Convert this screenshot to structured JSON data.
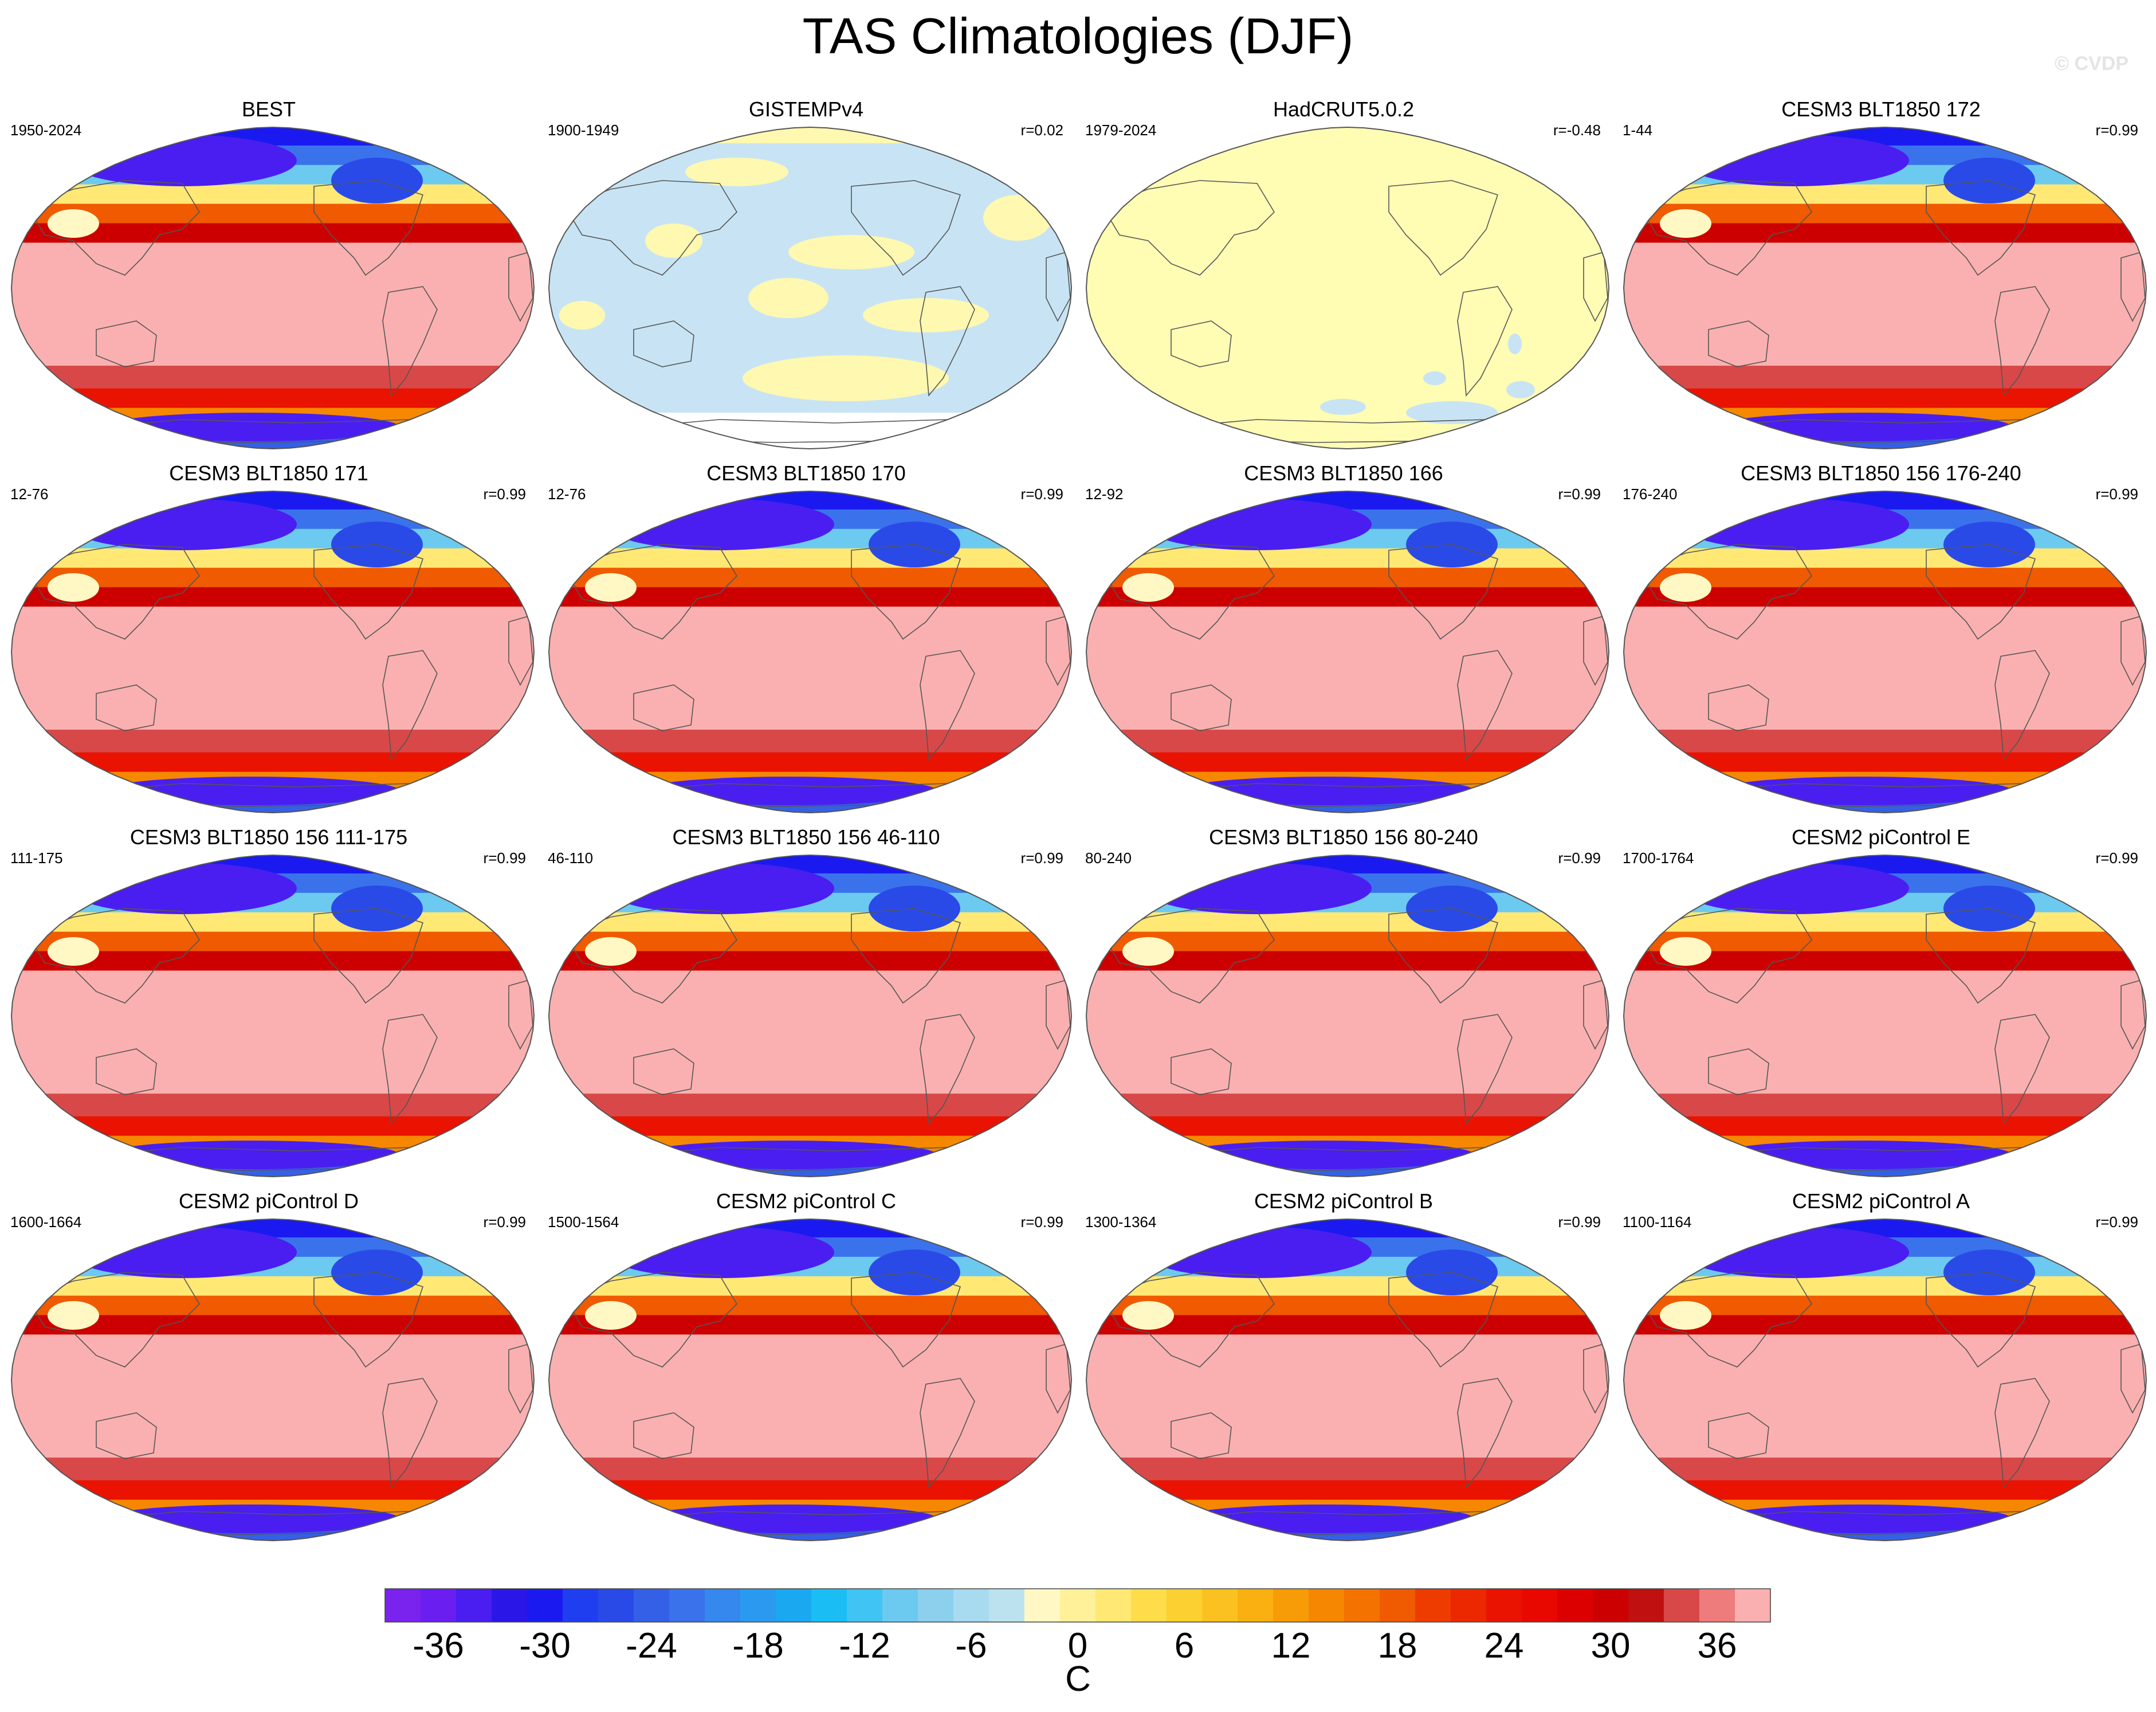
{
  "title": "TAS Climatologies (DJF)",
  "watermark": "© CVDP",
  "chart_data": {
    "type": "heatmap",
    "variable": "TAS",
    "season": "DJF",
    "projection": "Robinson (Pacific-centered)",
    "colorbar": {
      "unit": "C",
      "levels": [
        -39,
        -37.5,
        -36,
        -34.5,
        -33,
        -31.5,
        -30,
        -28.5,
        -27,
        -25.5,
        -24,
        -22.5,
        -21,
        -19.5,
        -18,
        -16.5,
        -15,
        -13.5,
        -12,
        -10.5,
        -9,
        -7.5,
        -6,
        -4.5,
        -3,
        -1.5,
        0,
        1.5,
        3,
        4.5,
        6,
        7.5,
        9,
        10.5,
        12,
        13.5,
        15,
        16.5,
        18,
        19.5,
        21,
        22.5,
        24,
        25.5,
        27,
        28.5,
        30,
        31.5,
        33,
        34.5,
        36,
        37.5,
        39
      ],
      "tick_labels": [
        "-36",
        "-30",
        "-24",
        "-18",
        "-12",
        "-6",
        "0",
        "6",
        "12",
        "18",
        "24",
        "30",
        "36"
      ],
      "colors": [
        "#7a22ee",
        "#6a1ef0",
        "#4a1ef0",
        "#2b16e8",
        "#1a1af0",
        "#1e3ef0",
        "#2a4ae8",
        "#3460e8",
        "#3a72ec",
        "#3488ee",
        "#2a9af0",
        "#1aa8f0",
        "#1abef4",
        "#40c4f4",
        "#6ccaf0",
        "#8cd0ee",
        "#a8daf0",
        "#bce2f0",
        "#fff8c4",
        "#fff09a",
        "#ffe874",
        "#fedc4a",
        "#fcd030",
        "#fbc120",
        "#f9b010",
        "#f79c06",
        "#f58800",
        "#f37200",
        "#f05a00",
        "#ee3c00",
        "#ec2800",
        "#ea1200",
        "#e80800",
        "#dc0000",
        "#cc0000",
        "#c01010",
        "#d84848",
        "#ee7c7c",
        "#fab0b0"
      ]
    },
    "panels": [
      {
        "name": "BEST",
        "period": "1950-2024",
        "r": "",
        "kind": "full"
      },
      {
        "name": "GISTEMPv4",
        "period": "1900-1949",
        "r": "r=0.02",
        "kind": "gistemp"
      },
      {
        "name": "HadCRUT5.0.2",
        "period": "1979-2024",
        "r": "r=-0.48",
        "kind": "hadcrut"
      },
      {
        "name": "CESM3 BLT1850 172",
        "period": "1-44",
        "r": "r=0.99",
        "kind": "full"
      },
      {
        "name": "CESM3 BLT1850 171",
        "period": "12-76",
        "r": "r=0.99",
        "kind": "full"
      },
      {
        "name": "CESM3 BLT1850 170",
        "period": "12-76",
        "r": "r=0.99",
        "kind": "full"
      },
      {
        "name": "CESM3 BLT1850 166",
        "period": "12-92",
        "r": "r=0.99",
        "kind": "full"
      },
      {
        "name": "CESM3 BLT1850 156 176-240",
        "period": "176-240",
        "r": "r=0.99",
        "kind": "full"
      },
      {
        "name": "CESM3 BLT1850 156 111-175",
        "period": "111-175",
        "r": "r=0.99",
        "kind": "full"
      },
      {
        "name": "CESM3 BLT1850 156 46-110",
        "period": "46-110",
        "r": "r=0.99",
        "kind": "full"
      },
      {
        "name": "CESM3 BLT1850 156 80-240",
        "period": "80-240",
        "r": "r=0.99",
        "kind": "full"
      },
      {
        "name": "CESM2 piControl E",
        "period": "1700-1764",
        "r": "r=0.99",
        "kind": "full"
      },
      {
        "name": "CESM2 piControl D",
        "period": "1600-1664",
        "r": "r=0.99",
        "kind": "full"
      },
      {
        "name": "CESM2 piControl C",
        "period": "1500-1564",
        "r": "r=0.99",
        "kind": "full"
      },
      {
        "name": "CESM2 piControl B",
        "period": "1300-1364",
        "r": "r=0.99",
        "kind": "full"
      },
      {
        "name": "CESM2 piControl A",
        "period": "1100-1164",
        "r": "r=0.99",
        "kind": "full"
      }
    ]
  }
}
